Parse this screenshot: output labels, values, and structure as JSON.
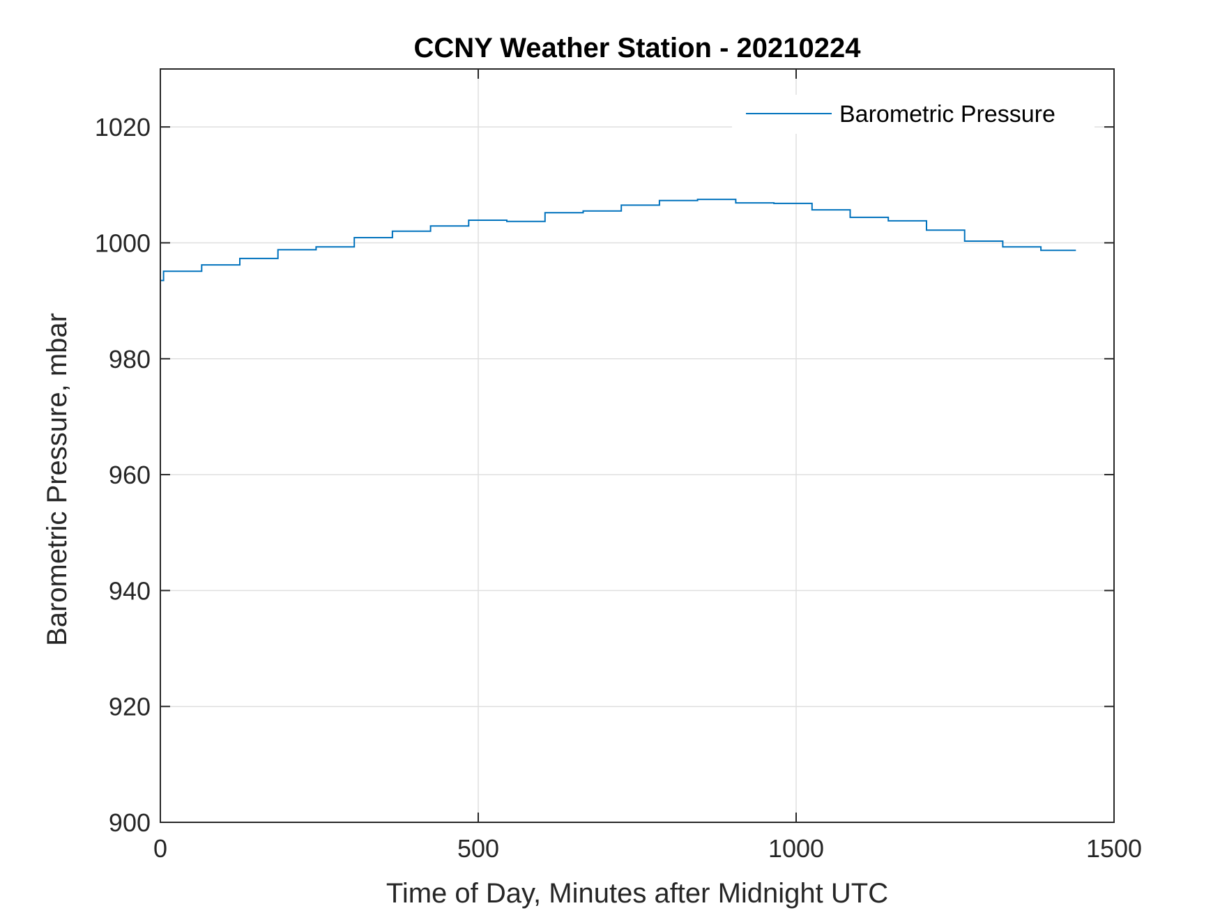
{
  "chart_data": {
    "type": "line",
    "title": "CCNY Weather Station - 20210224",
    "xlabel": "Time of Day, Minutes after Midnight UTC",
    "ylabel": "Barometric Pressure, mbar",
    "xlim": [
      0,
      1500
    ],
    "ylim": [
      900,
      1030
    ],
    "xticks": [
      0,
      500,
      1000,
      1500
    ],
    "yticks": [
      900,
      920,
      940,
      960,
      980,
      1000,
      1020
    ],
    "grid": true,
    "legend_position": "top-right",
    "series": [
      {
        "name": "Barometric Pressure",
        "color": "#0072BD",
        "step": true,
        "x": [
          0,
          5,
          65,
          125,
          185,
          245,
          305,
          365,
          425,
          485,
          545,
          605,
          665,
          725,
          785,
          845,
          905,
          965,
          1025,
          1085,
          1145,
          1205,
          1265,
          1325,
          1385,
          1440
        ],
        "y": [
          993.5,
          995.1,
          996.2,
          997.3,
          998.8,
          999.3,
          1000.9,
          1002.0,
          1002.9,
          1003.9,
          1003.7,
          1005.2,
          1005.5,
          1006.5,
          1007.3,
          1007.5,
          1006.9,
          1006.8,
          1005.7,
          1004.4,
          1003.8,
          1002.2,
          1000.3,
          999.3,
          998.7,
          998.7
        ]
      }
    ]
  }
}
